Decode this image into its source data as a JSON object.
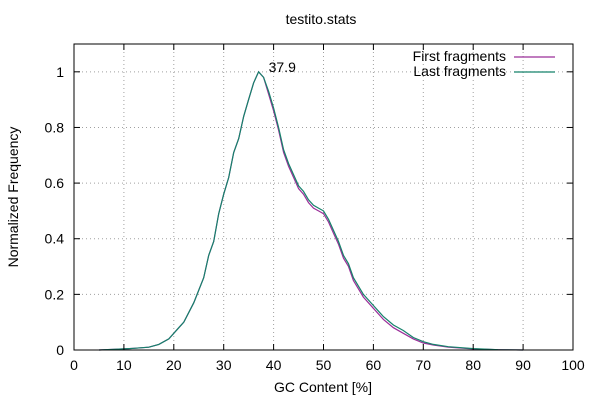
{
  "chart_data": {
    "type": "line",
    "title": "testito.stats",
    "xlabel": "GC Content [%]",
    "ylabel": "Normalized Frequency",
    "xlim": [
      0,
      100
    ],
    "ylim": [
      0,
      1.1
    ],
    "x_ticks": [
      0,
      10,
      20,
      30,
      40,
      50,
      60,
      70,
      80,
      90,
      100
    ],
    "y_ticks": [
      0,
      0.2,
      0.4,
      0.6,
      0.8,
      1
    ],
    "grid": true,
    "legend_position": "top-right",
    "annotation": {
      "text": "37.9",
      "x": 39,
      "y": 1.0
    },
    "series": [
      {
        "name": "First fragments",
        "color": "#9b2f99",
        "points": [
          [
            5,
            0
          ],
          [
            8,
            0.002
          ],
          [
            10,
            0.004
          ],
          [
            12,
            0.006
          ],
          [
            15,
            0.01
          ],
          [
            17,
            0.02
          ],
          [
            19,
            0.04
          ],
          [
            21,
            0.08
          ],
          [
            22,
            0.1
          ],
          [
            24,
            0.17
          ],
          [
            26,
            0.26
          ],
          [
            27,
            0.34
          ],
          [
            28,
            0.39
          ],
          [
            29,
            0.49
          ],
          [
            30,
            0.56
          ],
          [
            31,
            0.62
          ],
          [
            32,
            0.71
          ],
          [
            33,
            0.76
          ],
          [
            34,
            0.84
          ],
          [
            35,
            0.9
          ],
          [
            36,
            0.96
          ],
          [
            37,
            1.0
          ],
          [
            38,
            0.98
          ],
          [
            39,
            0.92
          ],
          [
            40,
            0.86
          ],
          [
            41,
            0.79
          ],
          [
            42,
            0.71
          ],
          [
            43,
            0.66
          ],
          [
            44,
            0.62
          ],
          [
            45,
            0.58
          ],
          [
            46,
            0.56
          ],
          [
            47,
            0.53
          ],
          [
            48,
            0.51
          ],
          [
            49,
            0.5
          ],
          [
            50,
            0.49
          ],
          [
            51,
            0.46
          ],
          [
            52,
            0.42
          ],
          [
            53,
            0.38
          ],
          [
            54,
            0.33
          ],
          [
            55,
            0.3
          ],
          [
            56,
            0.25
          ],
          [
            58,
            0.19
          ],
          [
            60,
            0.15
          ],
          [
            62,
            0.11
          ],
          [
            64,
            0.08
          ],
          [
            66,
            0.06
          ],
          [
            68,
            0.04
          ],
          [
            70,
            0.025
          ],
          [
            72,
            0.018
          ],
          [
            75,
            0.01
          ],
          [
            80,
            0.004
          ],
          [
            85,
            0.001
          ],
          [
            90,
            0
          ]
        ]
      },
      {
        "name": "Last fragments",
        "color": "#15826b",
        "points": [
          [
            5,
            0
          ],
          [
            8,
            0.002
          ],
          [
            10,
            0.004
          ],
          [
            12,
            0.006
          ],
          [
            15,
            0.01
          ],
          [
            17,
            0.02
          ],
          [
            19,
            0.04
          ],
          [
            21,
            0.08
          ],
          [
            22,
            0.1
          ],
          [
            24,
            0.17
          ],
          [
            26,
            0.26
          ],
          [
            27,
            0.34
          ],
          [
            28,
            0.39
          ],
          [
            29,
            0.49
          ],
          [
            30,
            0.56
          ],
          [
            31,
            0.62
          ],
          [
            32,
            0.71
          ],
          [
            33,
            0.76
          ],
          [
            34,
            0.84
          ],
          [
            35,
            0.9
          ],
          [
            36,
            0.96
          ],
          [
            37,
            1.0
          ],
          [
            38,
            0.98
          ],
          [
            39,
            0.93
          ],
          [
            40,
            0.87
          ],
          [
            41,
            0.8
          ],
          [
            42,
            0.72
          ],
          [
            43,
            0.67
          ],
          [
            44,
            0.63
          ],
          [
            45,
            0.59
          ],
          [
            46,
            0.57
          ],
          [
            47,
            0.54
          ],
          [
            48,
            0.52
          ],
          [
            49,
            0.51
          ],
          [
            50,
            0.5
          ],
          [
            51,
            0.47
          ],
          [
            52,
            0.43
          ],
          [
            53,
            0.39
          ],
          [
            54,
            0.34
          ],
          [
            55,
            0.31
          ],
          [
            56,
            0.26
          ],
          [
            58,
            0.2
          ],
          [
            60,
            0.16
          ],
          [
            62,
            0.12
          ],
          [
            64,
            0.09
          ],
          [
            66,
            0.07
          ],
          [
            68,
            0.045
          ],
          [
            70,
            0.03
          ],
          [
            72,
            0.02
          ],
          [
            75,
            0.012
          ],
          [
            80,
            0.005
          ],
          [
            85,
            0.001
          ],
          [
            90,
            0
          ]
        ]
      }
    ]
  }
}
